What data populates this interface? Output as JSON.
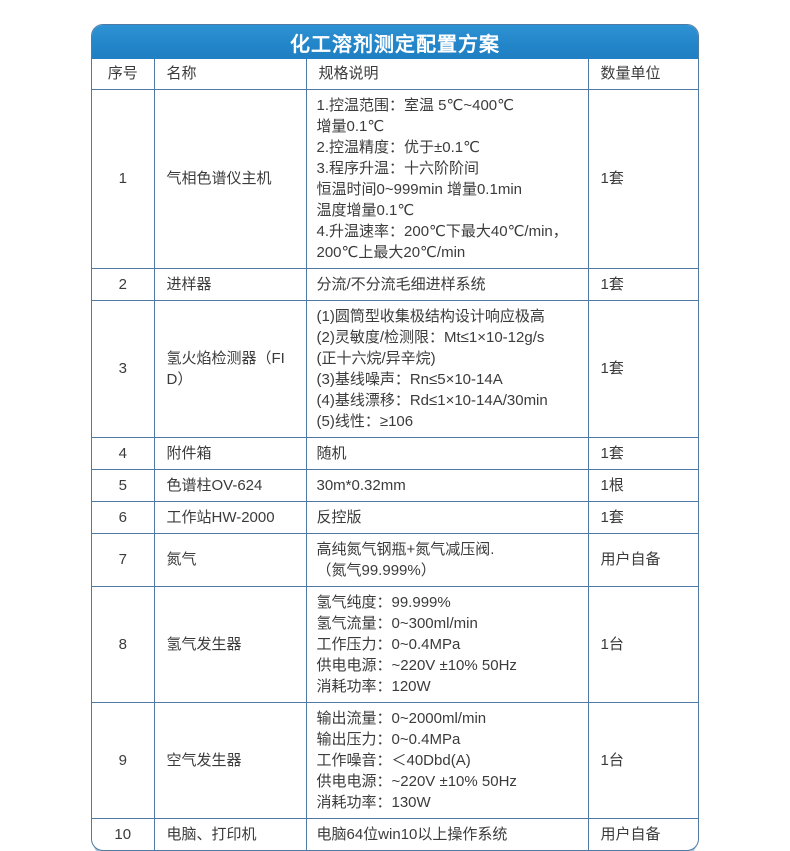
{
  "title": "化工溶剂测定配置方案",
  "columns": {
    "no": "序号",
    "name": "名称",
    "spec": "规格说明",
    "qty": "数量单位"
  },
  "rows": [
    {
      "no": "1",
      "name": "气相色谱仪主机",
      "spec": [
        "1.控温范围：室温 5℃~400℃",
        "增量0.1℃",
        "2.控温精度：优于±0.1℃",
        "3.程序升温：十六阶阶间",
        "恒温时间0~999min 增量0.1min",
        "温度增量0.1℃",
        "4.升温速率：200℃下最大40℃/min，",
        "200℃上最大20℃/min"
      ],
      "qty": "1套"
    },
    {
      "no": "2",
      "name": "进样器",
      "spec": [
        "分流/不分流毛细进样系统"
      ],
      "qty": "1套"
    },
    {
      "no": "3",
      "name": "氢火焰检测器（FID）",
      "spec": [
        "(1)圆筒型收集极结构设计响应极高",
        "(2)灵敏度/检测限：Mt≤1×10-12g/s",
        "(正十六烷/异辛烷)",
        "(3)基线噪声：Rn≤5×10-14A",
        "(4)基线漂移：Rd≤1×10-14A/30min",
        "(5)线性：≥106"
      ],
      "qty": "1套"
    },
    {
      "no": "4",
      "name": "附件箱",
      "spec": [
        "随机"
      ],
      "qty": "1套"
    },
    {
      "no": "5",
      "name": "色谱柱OV-624",
      "spec": [
        "30m*0.32mm"
      ],
      "qty": "1根"
    },
    {
      "no": "6",
      "name": "工作站HW-2000",
      "spec": [
        "反控版"
      ],
      "qty": "1套"
    },
    {
      "no": "7",
      "name": "氮气",
      "spec": [
        "高纯氮气钢瓶+氮气减压阀.",
        "（氮气99.999%）"
      ],
      "qty": "用户自备"
    },
    {
      "no": "8",
      "name": "氢气发生器",
      "spec": [
        "氢气纯度：99.999%",
        "氢气流量：0~300ml/min",
        "工作压力：0~0.4MPa",
        "供电电源：~220V ±10% 50Hz",
        "消耗功率：120W"
      ],
      "qty": "1台"
    },
    {
      "no": "9",
      "name": "空气发生器",
      "spec": [
        "输出流量：0~2000ml/min",
        "输出压力：0~0.4MPa",
        "工作噪音：＜40Dbd(A)",
        "供电电源：~220V ±10% 50Hz",
        "消耗功率：130W"
      ],
      "qty": "1台"
    },
    {
      "no": "10",
      "name": "电脑、打印机",
      "spec": [
        "电脑64位win10以上操作系统"
      ],
      "qty": "用户自备"
    }
  ]
}
